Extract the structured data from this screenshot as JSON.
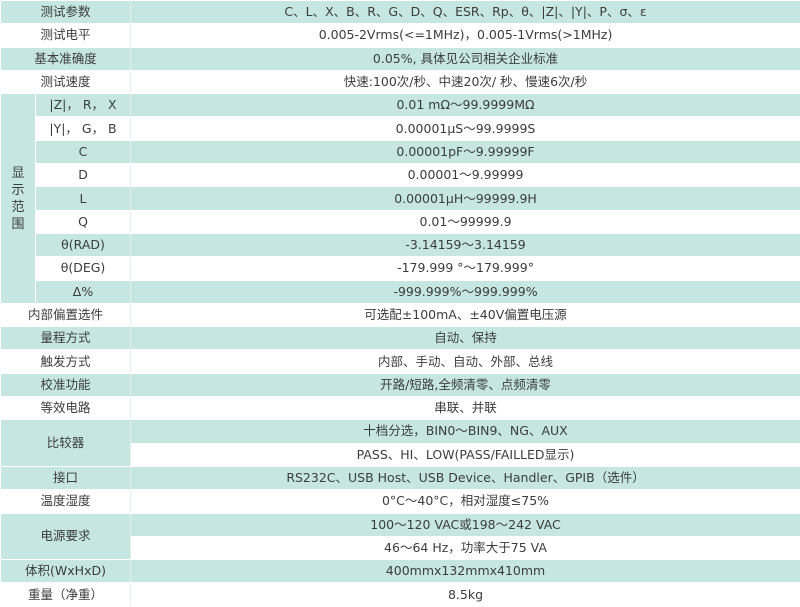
{
  "top_rows": [
    {
      "label": "测试参数",
      "value": "C、L、X、B、R、G、D、Q、ESR、Rp、θ、|Z|、|Y|、P、σ、ε"
    },
    {
      "label": "测试电平",
      "value": "0.005-2Vrms(<=1MHz)，0.005-1Vrms(>1MHz)"
    },
    {
      "label": "基本准确度",
      "value": "0.05%, 具体见公司相关企业标准"
    },
    {
      "label": "测试速度",
      "value": "快速:100次/秒、中速20次/ 秒、慢速6次/秒"
    }
  ],
  "display_range": {
    "label": "显示范围",
    "rows": [
      {
        "label": "|Z|， R， X",
        "value": "0.01 mΩ～99.9999MΩ"
      },
      {
        "label": "|Y|， G， B",
        "value": "0.00001μS～99.9999S"
      },
      {
        "label": "C",
        "value": "0.00001pF～9.99999F"
      },
      {
        "label": "D",
        "value": "0.00001～9.99999"
      },
      {
        "label": "L",
        "value": "0.00001μH～99999.9H"
      },
      {
        "label": "Q",
        "value": "0.01～99999.9"
      },
      {
        "label": "θ(RAD)",
        "value": "-3.14159～3.14159"
      },
      {
        "label": "θ(DEG)",
        "value": "-179.999 °～179.999°"
      },
      {
        "label": "Δ%",
        "value": "-999.999%～999.999%"
      }
    ]
  },
  "mid_rows": [
    {
      "label": "内部偏置选件",
      "value": "可选配±100mA、±40V偏置电压源"
    },
    {
      "label": "量程方式",
      "value": "自动、保持"
    },
    {
      "label": "触发方式",
      "value": "内部、手动、自动、外部、总线"
    },
    {
      "label": "校准功能",
      "value": "开路/短路,全频清零、点频清零"
    },
    {
      "label": "等效电路",
      "value": "串联、并联"
    }
  ],
  "comparator": {
    "label": "比较器",
    "values": [
      "十档分选，BIN0～BIN9、NG、AUX",
      "PASS、HI、LOW(PASS/FAILLED显示)"
    ]
  },
  "interface": {
    "label": "接口",
    "value": "RS232C、USB Host、USB Device、Handler、GPIB（选件）"
  },
  "environment": {
    "label": "温度湿度",
    "value": "0°C～40°C，相对湿度≤75%"
  },
  "power": {
    "label": "电源要求",
    "values": [
      "100～120 VAC或198～242 VAC",
      "46～64 Hz，功率大于75 VA"
    ]
  },
  "size": {
    "label": "体积(WxHxD)",
    "value": "400mmx132mmx410mm"
  },
  "weight": {
    "label": "重量（净重）",
    "value": "8.5kg"
  }
}
